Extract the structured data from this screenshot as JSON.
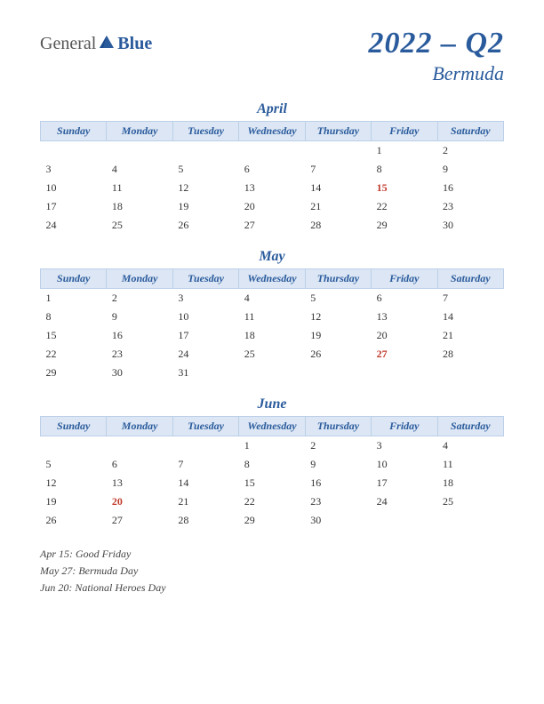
{
  "logo": {
    "general": "General",
    "blue": "Blue"
  },
  "title": "2022 – Q2",
  "subtitle": "Bermuda",
  "day_headers": [
    "Sunday",
    "Monday",
    "Tuesday",
    "Wednesday",
    "Thursday",
    "Friday",
    "Saturday"
  ],
  "colors": {
    "accent": "#2a5b9c",
    "header_bg": "#dce6f4",
    "header_border": "#bcd0e8",
    "holiday": "#c0392b",
    "text": "#333333",
    "background": "#ffffff"
  },
  "months": [
    {
      "name": "April",
      "weeks": [
        [
          "",
          "",
          "",
          "",
          "",
          "1",
          "2"
        ],
        [
          "3",
          "4",
          "5",
          "6",
          "7",
          "8",
          "9"
        ],
        [
          "10",
          "11",
          "12",
          "13",
          "14",
          "15",
          "16"
        ],
        [
          "17",
          "18",
          "19",
          "20",
          "21",
          "22",
          "23"
        ],
        [
          "24",
          "25",
          "26",
          "27",
          "28",
          "29",
          "30"
        ]
      ],
      "holidays": [
        "15"
      ]
    },
    {
      "name": "May",
      "weeks": [
        [
          "1",
          "2",
          "3",
          "4",
          "5",
          "6",
          "7"
        ],
        [
          "8",
          "9",
          "10",
          "11",
          "12",
          "13",
          "14"
        ],
        [
          "15",
          "16",
          "17",
          "18",
          "19",
          "20",
          "21"
        ],
        [
          "22",
          "23",
          "24",
          "25",
          "26",
          "27",
          "28"
        ],
        [
          "29",
          "30",
          "31",
          "",
          "",
          "",
          ""
        ]
      ],
      "holidays": [
        "27"
      ]
    },
    {
      "name": "June",
      "weeks": [
        [
          "",
          "",
          "",
          "1",
          "2",
          "3",
          "4"
        ],
        [
          "5",
          "6",
          "7",
          "8",
          "9",
          "10",
          "11"
        ],
        [
          "12",
          "13",
          "14",
          "15",
          "16",
          "17",
          "18"
        ],
        [
          "19",
          "20",
          "21",
          "22",
          "23",
          "24",
          "25"
        ],
        [
          "26",
          "27",
          "28",
          "29",
          "30",
          "",
          ""
        ]
      ],
      "holidays": [
        "20"
      ]
    }
  ],
  "holiday_list": [
    "Apr 15: Good Friday",
    "May 27: Bermuda Day",
    "Jun 20: National Heroes Day"
  ]
}
